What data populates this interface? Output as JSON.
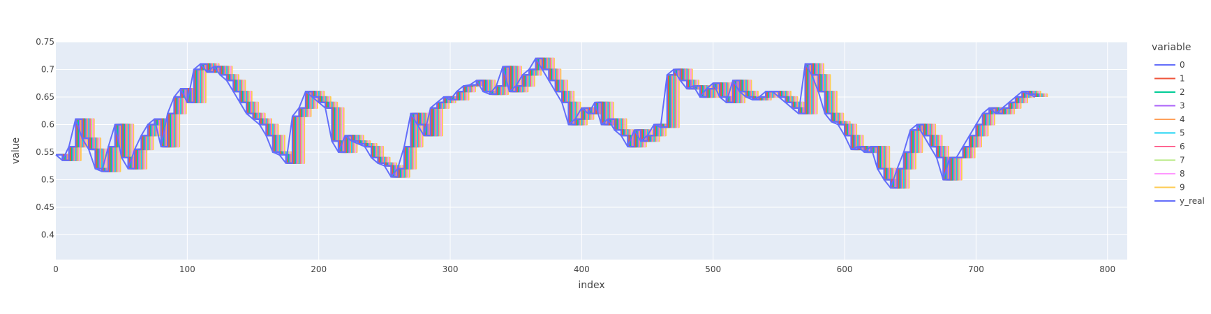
{
  "chart_data": {
    "type": "line",
    "title": "",
    "xlabel": "index",
    "ylabel": "value",
    "xlim": [
      0,
      815
    ],
    "ylim": [
      0.355,
      0.75
    ],
    "x_ticks": [
      0,
      100,
      200,
      300,
      400,
      500,
      600,
      700,
      800
    ],
    "y_ticks": [
      0.4,
      0.45,
      0.5,
      0.55,
      0.6,
      0.65,
      0.7,
      0.75
    ],
    "y_tick_labels": [
      "0.4",
      "0.45",
      "0.5",
      "0.55",
      "0.6",
      "0.65",
      "0.7",
      "0.75"
    ],
    "grid": true,
    "legend_title": "variable",
    "legend_position": "right",
    "x_step": 5,
    "y_real": [
      0.545,
      0.535,
      0.56,
      0.61,
      0.575,
      0.555,
      0.52,
      0.515,
      0.56,
      0.6,
      0.54,
      0.52,
      0.555,
      0.58,
      0.6,
      0.61,
      0.56,
      0.62,
      0.65,
      0.665,
      0.64,
      0.7,
      0.71,
      0.695,
      0.705,
      0.69,
      0.68,
      0.66,
      0.64,
      0.62,
      0.61,
      0.6,
      0.58,
      0.55,
      0.545,
      0.53,
      0.615,
      0.63,
      0.66,
      0.65,
      0.64,
      0.63,
      0.57,
      0.55,
      0.58,
      0.57,
      0.565,
      0.56,
      0.54,
      0.53,
      0.525,
      0.505,
      0.52,
      0.56,
      0.62,
      0.6,
      0.58,
      0.63,
      0.64,
      0.65,
      0.645,
      0.66,
      0.67,
      0.672,
      0.68,
      0.66,
      0.655,
      0.67,
      0.705,
      0.66,
      0.67,
      0.69,
      0.7,
      0.72,
      0.7,
      0.68,
      0.66,
      0.64,
      0.6,
      0.61,
      0.63,
      0.62,
      0.64,
      0.6,
      0.61,
      0.59,
      0.58,
      0.56,
      0.59,
      0.57,
      0.58,
      0.6,
      0.595,
      0.69,
      0.7,
      0.68,
      0.665,
      0.67,
      0.65,
      0.665,
      0.675,
      0.65,
      0.64,
      0.68,
      0.66,
      0.65,
      0.645,
      0.65,
      0.66,
      0.66,
      0.65,
      0.64,
      0.63,
      0.62,
      0.71,
      0.69,
      0.66,
      0.62,
      0.605,
      0.6,
      0.58,
      0.555,
      0.56,
      0.55,
      0.56,
      0.52,
      0.5,
      0.485,
      0.52,
      0.55,
      0.59,
      0.6,
      0.58,
      0.56,
      0.54,
      0.5,
      0.54,
      0.54,
      0.56,
      0.58,
      0.6,
      0.62,
      0.63,
      0.62,
      0.63,
      0.64,
      0.65,
      0.66,
      0.655,
      0.65
    ],
    "lag_step": 1,
    "series": [
      {
        "name": "0",
        "color": "#636EFA",
        "lag": 0
      },
      {
        "name": "1",
        "color": "#EF553B",
        "lag": 1
      },
      {
        "name": "2",
        "color": "#00CC96",
        "lag": 2
      },
      {
        "name": "3",
        "color": "#AB63FA",
        "lag": 3
      },
      {
        "name": "4",
        "color": "#FFA15A",
        "lag": 4
      },
      {
        "name": "5",
        "color": "#19D3F3",
        "lag": 5
      },
      {
        "name": "6",
        "color": "#FF6692",
        "lag": 6
      },
      {
        "name": "7",
        "color": "#B6E880",
        "lag": 7
      },
      {
        "name": "8",
        "color": "#FF97FF",
        "lag": 8
      },
      {
        "name": "9",
        "color": "#FECB52",
        "lag": 9
      },
      {
        "name": "y_real",
        "color": "#636EFA",
        "lag": 0
      }
    ]
  }
}
